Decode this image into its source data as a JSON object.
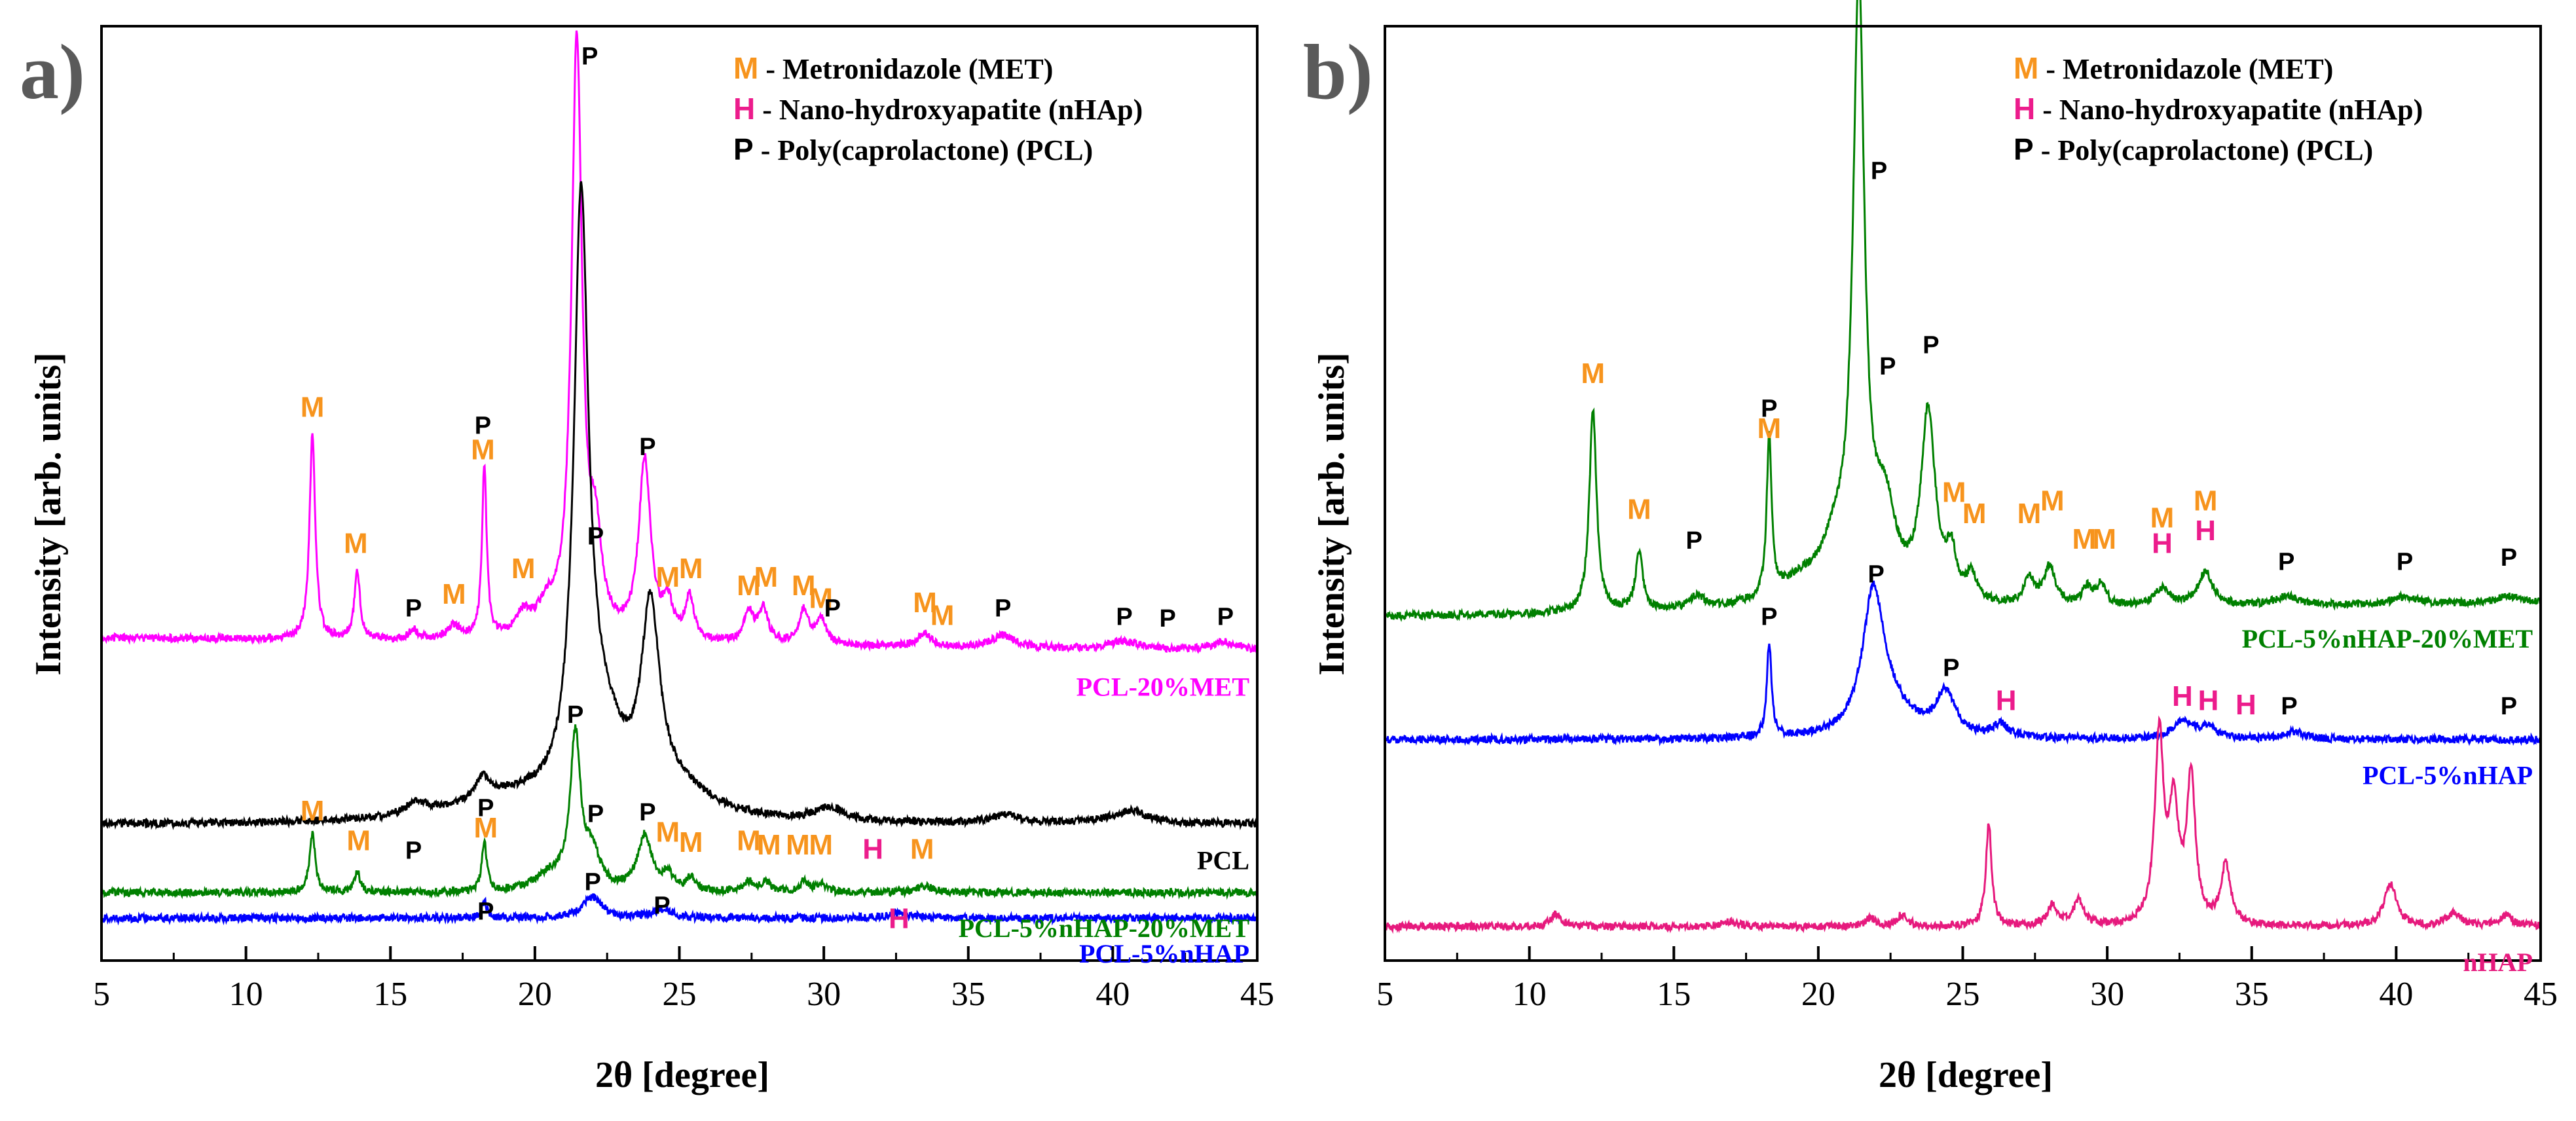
{
  "legend": [
    {
      "symbol": "M",
      "text": " - Metronidazole (MET)",
      "color": "#F7941D"
    },
    {
      "symbol": "H",
      "text": " - Nano-hydroxyapatite (nHAp)",
      "color": "#EC1C8C"
    },
    {
      "symbol": "P",
      "text": " - Poly(caprolactone) (PCL)",
      "color": "#000000"
    }
  ],
  "chart_data": [
    {
      "type": "line",
      "panel": "a)",
      "xlabel": "2θ [degree]",
      "ylabel": "Intensity [arb. units]",
      "xlim": [
        5,
        45
      ],
      "xticks": [
        5,
        10,
        15,
        20,
        25,
        30,
        35,
        40,
        45
      ],
      "yticks": false,
      "ylim": [
        0,
        110
      ],
      "grid": false,
      "legend_position": "top-right",
      "series": [
        {
          "name": "PCL-20%MET",
          "color": "#FF00FF",
          "baseline": 38,
          "slope": -0.04,
          "peaks": [
            [
              12.3,
              24,
              0.12
            ],
            [
              13.85,
              8,
              0.12
            ],
            [
              15.8,
              1.2,
              0.2
            ],
            [
              17.2,
              1.6,
              0.25
            ],
            [
              18.25,
              20,
              0.1
            ],
            [
              19.6,
              2.5,
              0.3
            ],
            [
              20.4,
              3,
              0.4
            ],
            [
              21.45,
              70,
              0.22
            ],
            [
              22.1,
              10,
              0.25
            ],
            [
              23.8,
              21,
              0.25
            ],
            [
              24.6,
              4,
              0.2
            ],
            [
              25.35,
              5,
              0.18
            ],
            [
              27.4,
              3.5,
              0.2
            ],
            [
              27.9,
              4,
              0.2
            ],
            [
              29.3,
              4,
              0.2
            ],
            [
              29.9,
              3,
              0.2
            ],
            [
              33.5,
              1.5,
              0.3
            ],
            [
              36.2,
              1.5,
              0.5
            ],
            [
              40.4,
              1,
              0.6
            ],
            [
              43.9,
              1,
              0.6
            ]
          ]
        },
        {
          "name": "PCL",
          "color": "#000000",
          "baseline": 16,
          "slope": 0.0,
          "peaks": [
            [
              15.9,
              1.4,
              0.5
            ],
            [
              18.2,
              2.5,
              0.3
            ],
            [
              19.0,
              2.5,
              2.2
            ],
            [
              21.6,
              68,
              0.3
            ],
            [
              22.3,
              9,
              0.9
            ],
            [
              24.0,
              22,
              0.38
            ],
            [
              25.0,
              3,
              1.4
            ],
            [
              30.2,
              1.5,
              0.6
            ],
            [
              36.3,
              1,
              0.6
            ],
            [
              40.6,
              1.5,
              0.8
            ]
          ]
        },
        {
          "name": "PCL-5%nHAP-20%MET",
          "color": "#008000",
          "baseline": 8,
          "slope": 0.0,
          "peaks": [
            [
              12.3,
              7,
              0.12
            ],
            [
              13.85,
              2.5,
              0.12
            ],
            [
              18.25,
              6,
              0.1
            ],
            [
              20.5,
              1.8,
              0.6
            ],
            [
              21.4,
              18,
              0.22
            ],
            [
              22.0,
              4,
              0.3
            ],
            [
              23.8,
              6.5,
              0.3
            ],
            [
              24.6,
              2,
              0.2
            ],
            [
              25.4,
              1.5,
              0.2
            ],
            [
              27.4,
              1.2,
              0.2
            ],
            [
              28.0,
              1.2,
              0.2
            ],
            [
              29.3,
              1.2,
              0.2
            ],
            [
              29.9,
              1,
              0.2
            ],
            [
              33.5,
              0.8,
              0.3
            ]
          ]
        },
        {
          "name": "PCL-5%nHAP",
          "color": "#0000FF",
          "baseline": 5,
          "slope": 0.0,
          "peaks": [
            [
              18.25,
              2,
              0.1
            ],
            [
              22.0,
              2.5,
              0.4
            ],
            [
              24.4,
              1,
              0.4
            ],
            [
              32.6,
              0.6,
              0.5
            ]
          ]
        }
      ],
      "annotations": [
        {
          "text": "P",
          "x": 21.9,
          "y": 105.5,
          "type": "P"
        },
        {
          "text": "M",
          "x": 12.3,
          "y": 64,
          "type": "M"
        },
        {
          "text": "M",
          "x": 13.8,
          "y": 48,
          "type": "M"
        },
        {
          "text": "P",
          "x": 15.8,
          "y": 40.5,
          "type": "P"
        },
        {
          "text": "M",
          "x": 17.2,
          "y": 42,
          "type": "M"
        },
        {
          "text": "P",
          "x": 18.2,
          "y": 62,
          "type": "P"
        },
        {
          "text": "M",
          "x": 18.2,
          "y": 59,
          "type": "M"
        },
        {
          "text": "M",
          "x": 19.6,
          "y": 45,
          "type": "M"
        },
        {
          "text": "P",
          "x": 22.1,
          "y": 49,
          "type": "P"
        },
        {
          "text": "P",
          "x": 23.9,
          "y": 59.5,
          "type": "P"
        },
        {
          "text": "M",
          "x": 24.6,
          "y": 44,
          "type": "M"
        },
        {
          "text": "M",
          "x": 25.4,
          "y": 45,
          "type": "M"
        },
        {
          "text": "M",
          "x": 27.4,
          "y": 43,
          "type": "M"
        },
        {
          "text": "M",
          "x": 28.0,
          "y": 44,
          "type": "M"
        },
        {
          "text": "M",
          "x": 29.3,
          "y": 43,
          "type": "M"
        },
        {
          "text": "M",
          "x": 29.9,
          "y": 41.5,
          "type": "M"
        },
        {
          "text": "P",
          "x": 30.3,
          "y": 40.5,
          "type": "P"
        },
        {
          "text": "M",
          "x": 33.5,
          "y": 41,
          "type": "M"
        },
        {
          "text": "M",
          "x": 34.1,
          "y": 39.5,
          "type": "M"
        },
        {
          "text": "P",
          "x": 36.2,
          "y": 40.5,
          "type": "P"
        },
        {
          "text": "P",
          "x": 40.4,
          "y": 39.5,
          "type": "P"
        },
        {
          "text": "P",
          "x": 41.9,
          "y": 39.3,
          "type": "P"
        },
        {
          "text": "P",
          "x": 43.9,
          "y": 39.5,
          "type": "P"
        },
        {
          "text": "P",
          "x": 21.4,
          "y": 28,
          "type": "P"
        },
        {
          "text": "M",
          "x": 12.3,
          "y": 16.5,
          "type": "M"
        },
        {
          "text": "M",
          "x": 13.9,
          "y": 13,
          "type": "M"
        },
        {
          "text": "P",
          "x": 15.8,
          "y": 12,
          "type": "P"
        },
        {
          "text": "P",
          "x": 18.3,
          "y": 17,
          "type": "P"
        },
        {
          "text": "M",
          "x": 18.3,
          "y": 14.5,
          "type": "M"
        },
        {
          "text": "P",
          "x": 22.1,
          "y": 16.3,
          "type": "P"
        },
        {
          "text": "P",
          "x": 23.9,
          "y": 16.5,
          "type": "P"
        },
        {
          "text": "M",
          "x": 24.6,
          "y": 14,
          "type": "M"
        },
        {
          "text": "M",
          "x": 25.4,
          "y": 12.8,
          "type": "M"
        },
        {
          "text": "M",
          "x": 27.4,
          "y": 13,
          "type": "M"
        },
        {
          "text": "M",
          "x": 28.1,
          "y": 12.5,
          "type": "M"
        },
        {
          "text": "M",
          "x": 29.1,
          "y": 12.5,
          "type": "M"
        },
        {
          "text": "M",
          "x": 29.9,
          "y": 12.5,
          "type": "M"
        },
        {
          "text": "H",
          "x": 31.7,
          "y": 12,
          "type": "H"
        },
        {
          "text": "M",
          "x": 33.4,
          "y": 12,
          "type": "M"
        },
        {
          "text": "P",
          "x": 18.3,
          "y": 4.8,
          "type": "P"
        },
        {
          "text": "P",
          "x": 22.0,
          "y": 8.3,
          "type": "P"
        },
        {
          "text": "P",
          "x": 24.4,
          "y": 5.5,
          "type": "P"
        },
        {
          "text": "H",
          "x": 32.6,
          "y": 3.8,
          "type": "H"
        }
      ]
    },
    {
      "type": "line",
      "panel": "b)",
      "xlabel": "2θ [degree]",
      "ylabel": "Intensity [arb. units]",
      "xlim": [
        5,
        45
      ],
      "xticks": [
        5,
        10,
        15,
        20,
        25,
        30,
        35,
        40,
        45
      ],
      "yticks": false,
      "ylim": [
        0,
        110
      ],
      "grid": false,
      "legend_position": "top-right",
      "series": [
        {
          "name": "PCL-5%nHAP-20%MET",
          "color": "#008000",
          "baseline": 40.5,
          "slope": 0.04,
          "peaks": [
            [
              12.2,
              24,
              0.15
            ],
            [
              13.8,
              7,
              0.15
            ],
            [
              15.8,
              1.5,
              0.3
            ],
            [
              18.3,
              19,
              0.1
            ],
            [
              19.5,
              3,
              1.2
            ],
            [
              20.6,
              5,
              0.5
            ],
            [
              21.4,
              71,
              0.24
            ],
            [
              22.3,
              10,
              0.45
            ],
            [
              23.8,
              22,
              0.3
            ],
            [
              24.6,
              5,
              0.2
            ],
            [
              25.3,
              3,
              0.2
            ],
            [
              27.3,
              3,
              0.2
            ],
            [
              28.0,
              4.5,
              0.25
            ],
            [
              29.3,
              2,
              0.2
            ],
            [
              29.8,
              2.5,
              0.2
            ],
            [
              31.9,
              2,
              0.3
            ],
            [
              33.4,
              4,
              0.3
            ],
            [
              36.2,
              1,
              0.5
            ],
            [
              40.3,
              0.8,
              0.5
            ],
            [
              43.9,
              0.8,
              0.5
            ]
          ]
        },
        {
          "name": "PCL-5%nHAP",
          "color": "#0000FF",
          "baseline": 26,
          "slope": 0.0,
          "peaks": [
            [
              18.3,
              11,
              0.1
            ],
            [
              21.9,
              16,
              0.45
            ],
            [
              22.5,
              3,
              0.9
            ],
            [
              24.4,
              5,
              0.4
            ],
            [
              26.3,
              1.5,
              0.3
            ],
            [
              32.6,
              2,
              0.45
            ],
            [
              33.5,
              1.2,
              0.4
            ],
            [
              36.5,
              0.8,
              0.5
            ]
          ]
        },
        {
          "name": "nHAP",
          "color": "#E6197D",
          "baseline": 4,
          "slope": 0.0,
          "peaks": [
            [
              10.9,
              1.5,
              0.2
            ],
            [
              16.9,
              0.6,
              0.3
            ],
            [
              21.8,
              1,
              0.2
            ],
            [
              22.9,
              1.4,
              0.2
            ],
            [
              25.9,
              12,
              0.12
            ],
            [
              28.1,
              2.5,
              0.2
            ],
            [
              29.0,
              3,
              0.2
            ],
            [
              31.8,
              22,
              0.18
            ],
            [
              32.3,
              13,
              0.2
            ],
            [
              32.9,
              17,
              0.18
            ],
            [
              34.1,
              7,
              0.2
            ],
            [
              39.8,
              5,
              0.25
            ],
            [
              42.0,
              1.5,
              0.3
            ],
            [
              43.8,
              1.2,
              0.3
            ],
            [
              46.7,
              2,
              0.3
            ]
          ]
        }
      ],
      "annotations": [
        {
          "text": "P",
          "x": 22.1,
          "y": 92,
          "type": "P"
        },
        {
          "text": "M",
          "x": 12.2,
          "y": 68,
          "type": "M"
        },
        {
          "text": "M",
          "x": 13.8,
          "y": 52,
          "type": "M"
        },
        {
          "text": "P",
          "x": 15.7,
          "y": 48.5,
          "type": "P"
        },
        {
          "text": "P",
          "x": 18.3,
          "y": 64,
          "type": "P"
        },
        {
          "text": "M",
          "x": 18.3,
          "y": 61.5,
          "type": "M"
        },
        {
          "text": "P",
          "x": 22.4,
          "y": 69,
          "type": "P"
        },
        {
          "text": "P",
          "x": 23.9,
          "y": 71.5,
          "type": "P"
        },
        {
          "text": "M",
          "x": 24.7,
          "y": 54,
          "type": "M"
        },
        {
          "text": "M",
          "x": 25.4,
          "y": 51.5,
          "type": "M"
        },
        {
          "text": "M",
          "x": 27.3,
          "y": 51.5,
          "type": "M"
        },
        {
          "text": "M",
          "x": 28.1,
          "y": 53,
          "type": "M"
        },
        {
          "text": "M",
          "x": 29.2,
          "y": 48.5,
          "type": "M"
        },
        {
          "text": "M",
          "x": 29.9,
          "y": 48.5,
          "type": "M"
        },
        {
          "text": "M",
          "x": 31.9,
          "y": 51,
          "type": "M"
        },
        {
          "text": "H",
          "x": 31.9,
          "y": 48,
          "type": "H"
        },
        {
          "text": "M",
          "x": 33.4,
          "y": 53,
          "type": "M"
        },
        {
          "text": "H",
          "x": 33.4,
          "y": 49.5,
          "type": "H"
        },
        {
          "text": "P",
          "x": 36.2,
          "y": 46,
          "type": "P"
        },
        {
          "text": "P",
          "x": 40.3,
          "y": 46,
          "type": "P"
        },
        {
          "text": "P",
          "x": 43.9,
          "y": 46.5,
          "type": "P"
        },
        {
          "text": "P",
          "x": 18.3,
          "y": 39.5,
          "type": "P"
        },
        {
          "text": "P",
          "x": 22.0,
          "y": 44.5,
          "type": "P"
        },
        {
          "text": "P",
          "x": 24.6,
          "y": 33.5,
          "type": "P"
        },
        {
          "text": "H",
          "x": 26.5,
          "y": 29.5,
          "type": "H"
        },
        {
          "text": "H",
          "x": 32.6,
          "y": 30,
          "type": "H"
        },
        {
          "text": "H",
          "x": 33.5,
          "y": 29.5,
          "type": "H"
        },
        {
          "text": "H",
          "x": 34.8,
          "y": 29,
          "type": "H"
        },
        {
          "text": "P",
          "x": 36.3,
          "y": 29,
          "type": "P"
        },
        {
          "text": "P",
          "x": 43.9,
          "y": 29,
          "type": "P"
        }
      ]
    }
  ]
}
